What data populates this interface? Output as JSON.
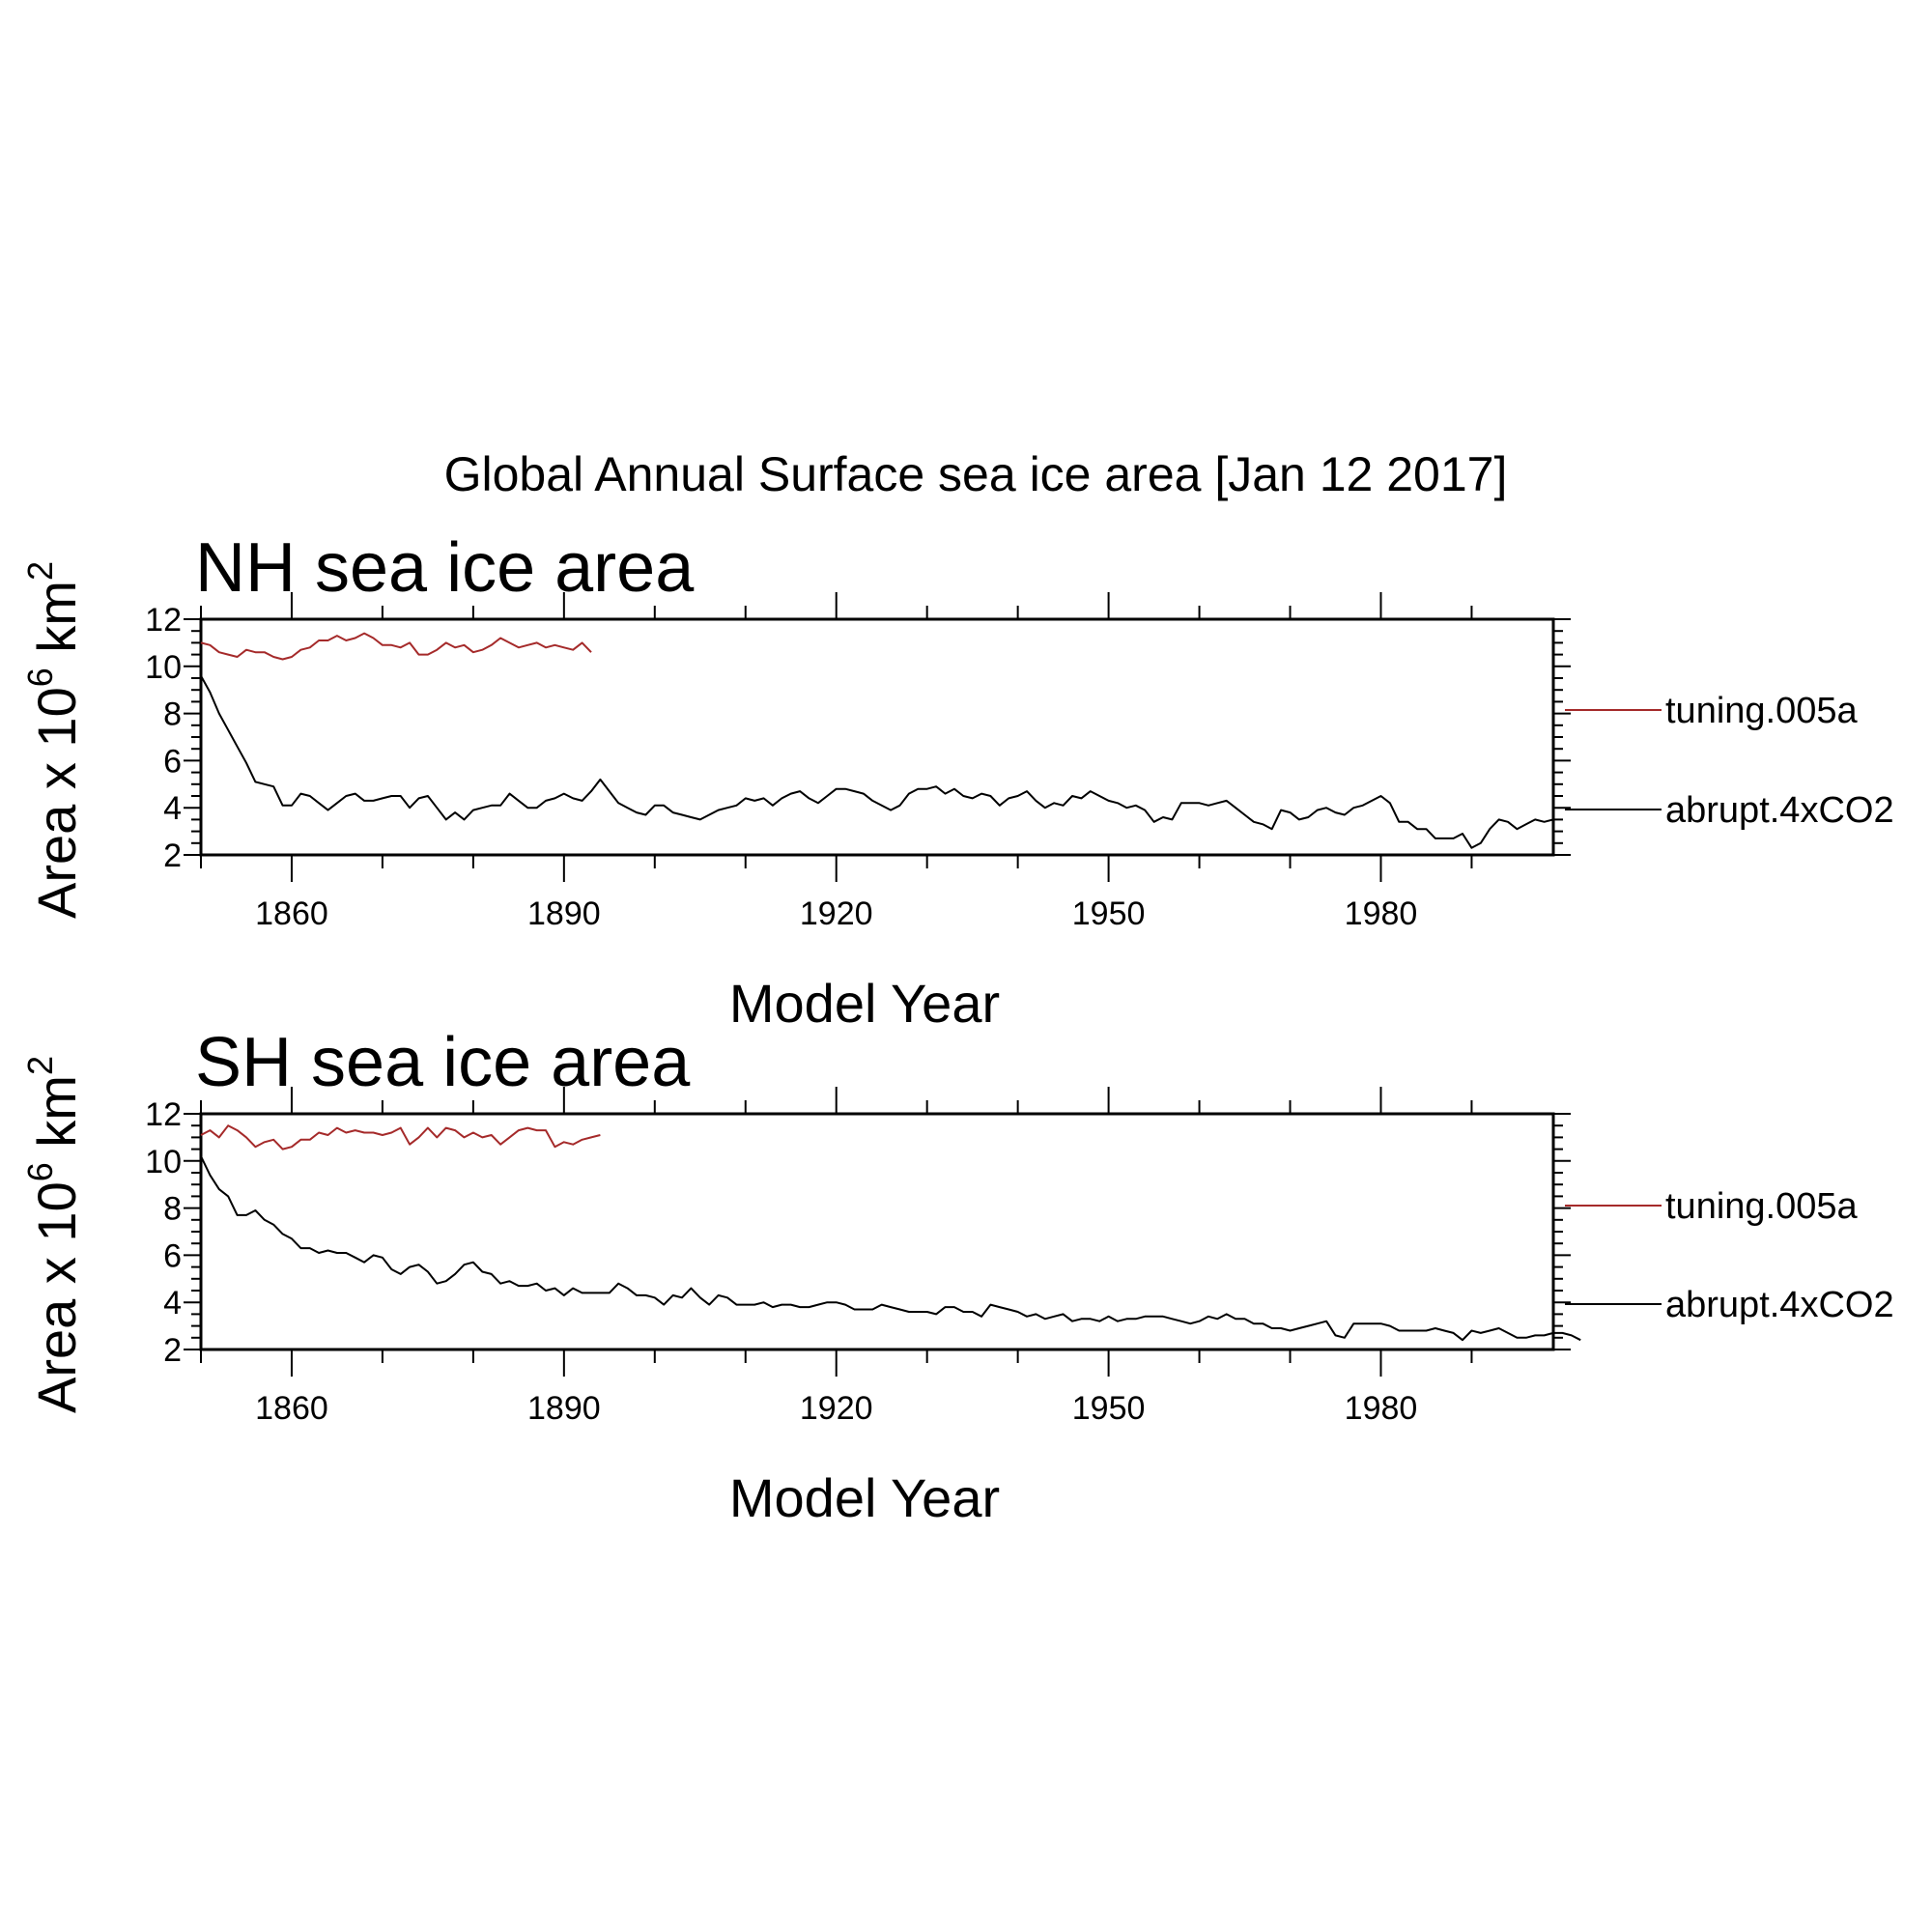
{
  "figure_title": "Global Annual Surface sea ice area [Jan 12 2017]",
  "colors": {
    "tuning": "#a52a2a",
    "abrupt": "#000000"
  },
  "chart_data": [
    {
      "type": "line",
      "title": "NH sea ice area",
      "xlabel": "Model Year",
      "ylabel_prefix": "Area x 10",
      "ylabel_exp": "6",
      "ylabel_unit": " km",
      "ylabel_unit_exp": "2",
      "xlim": [
        1850,
        1999
      ],
      "ylim": [
        2,
        12
      ],
      "x_ticks": [
        1860,
        1890,
        1920,
        1950,
        1980
      ],
      "y_ticks": [
        2,
        4,
        6,
        8,
        10,
        12
      ],
      "grid": false,
      "legend": "right",
      "series": [
        {
          "name": "tuning.005a",
          "color": "#a52a2a",
          "x_start": 1850,
          "values": [
            11.0,
            10.9,
            10.6,
            10.5,
            10.4,
            10.7,
            10.6,
            10.6,
            10.4,
            10.3,
            10.4,
            10.7,
            10.8,
            11.1,
            11.1,
            11.3,
            11.1,
            11.2,
            11.4,
            11.2,
            10.9,
            10.9,
            10.8,
            11.0,
            10.5,
            10.5,
            10.7,
            11.0,
            10.8,
            10.9,
            10.6,
            10.7,
            10.9,
            11.2,
            11.0,
            10.8,
            10.9,
            11.0,
            10.8,
            10.9,
            10.8,
            10.7,
            11.0,
            10.6
          ]
        },
        {
          "name": "abrupt.4xCO2",
          "color": "#000000",
          "x_start": 1850,
          "values": [
            9.6,
            8.9,
            8.0,
            7.3,
            6.6,
            5.9,
            5.1,
            5.0,
            4.9,
            4.1,
            4.1,
            4.6,
            4.5,
            4.2,
            3.9,
            4.2,
            4.5,
            4.6,
            4.3,
            4.3,
            4.4,
            4.5,
            4.5,
            4.0,
            4.4,
            4.5,
            4.0,
            3.5,
            3.8,
            3.5,
            3.9,
            4.0,
            4.1,
            4.1,
            4.6,
            4.3,
            4.0,
            4.0,
            4.3,
            4.4,
            4.6,
            4.4,
            4.3,
            4.7,
            5.2,
            4.7,
            4.2,
            4.0,
            3.8,
            3.7,
            4.1,
            4.1,
            3.8,
            3.7,
            3.6,
            3.5,
            3.7,
            3.9,
            4.0,
            4.1,
            4.4,
            4.3,
            4.4,
            4.1,
            4.4,
            4.6,
            4.7,
            4.4,
            4.2,
            4.5,
            4.8,
            4.8,
            4.7,
            4.6,
            4.3,
            4.1,
            3.9,
            4.1,
            4.6,
            4.8,
            4.8,
            4.9,
            4.6,
            4.8,
            4.5,
            4.4,
            4.6,
            4.5,
            4.1,
            4.4,
            4.5,
            4.7,
            4.3,
            4.0,
            4.2,
            4.1,
            4.5,
            4.4,
            4.7,
            4.5,
            4.3,
            4.2,
            4.0,
            4.1,
            3.9,
            3.4,
            3.6,
            3.5,
            4.2,
            4.2,
            4.2,
            4.1,
            4.2,
            4.3,
            4.0,
            3.7,
            3.4,
            3.3,
            3.1,
            3.9,
            3.8,
            3.5,
            3.6,
            3.9,
            4.0,
            3.8,
            3.7,
            4.0,
            4.1,
            4.3,
            4.5,
            4.2,
            3.4,
            3.4,
            3.1,
            3.1,
            2.7,
            2.7,
            2.7,
            2.9,
            2.3,
            2.5,
            3.1,
            3.5,
            3.4,
            3.1,
            3.3,
            3.5,
            3.4,
            3.5
          ]
        }
      ]
    },
    {
      "type": "line",
      "title": "SH sea ice area",
      "xlabel": "Model Year",
      "ylabel_prefix": "Area x 10",
      "ylabel_exp": "6",
      "ylabel_unit": " km",
      "ylabel_unit_exp": "2",
      "xlim": [
        1850,
        1999
      ],
      "ylim": [
        2,
        12
      ],
      "x_ticks": [
        1860,
        1890,
        1920,
        1950,
        1980
      ],
      "y_ticks": [
        2,
        4,
        6,
        8,
        10,
        12
      ],
      "grid": false,
      "legend": "right",
      "series": [
        {
          "name": "tuning.005a",
          "color": "#a52a2a",
          "x_start": 1850,
          "values": [
            11.1,
            11.3,
            11.0,
            11.5,
            11.3,
            11.0,
            10.6,
            10.8,
            10.9,
            10.5,
            10.6,
            10.9,
            10.9,
            11.2,
            11.1,
            11.4,
            11.2,
            11.3,
            11.2,
            11.2,
            11.1,
            11.2,
            11.4,
            10.7,
            11.0,
            11.4,
            11.0,
            11.4,
            11.3,
            11.0,
            11.2,
            11.0,
            11.1,
            10.7,
            11.0,
            11.3,
            11.4,
            11.3,
            11.3,
            10.6,
            10.8,
            10.7,
            10.9,
            11.0,
            11.1
          ]
        },
        {
          "name": "abrupt.4xCO2",
          "color": "#000000",
          "x_start": 1850,
          "values": [
            10.2,
            9.4,
            8.8,
            8.5,
            7.7,
            7.7,
            7.9,
            7.5,
            7.3,
            6.9,
            6.7,
            6.3,
            6.3,
            6.1,
            6.2,
            6.1,
            6.1,
            5.9,
            5.7,
            6.0,
            5.9,
            5.4,
            5.2,
            5.5,
            5.6,
            5.3,
            4.8,
            4.9,
            5.2,
            5.6,
            5.7,
            5.3,
            5.2,
            4.8,
            4.9,
            4.7,
            4.7,
            4.8,
            4.5,
            4.6,
            4.3,
            4.6,
            4.4,
            4.4,
            4.4,
            4.4,
            4.8,
            4.6,
            4.3,
            4.3,
            4.2,
            3.9,
            4.3,
            4.2,
            4.6,
            4.2,
            3.9,
            4.3,
            4.2,
            3.9,
            3.9,
            3.9,
            4.0,
            3.8,
            3.9,
            3.9,
            3.8,
            3.8,
            3.9,
            4.0,
            4.0,
            3.9,
            3.7,
            3.7,
            3.7,
            3.9,
            3.8,
            3.7,
            3.6,
            3.6,
            3.6,
            3.5,
            3.8,
            3.8,
            3.6,
            3.6,
            3.4,
            3.9,
            3.8,
            3.7,
            3.6,
            3.4,
            3.5,
            3.3,
            3.4,
            3.5,
            3.2,
            3.3,
            3.3,
            3.2,
            3.4,
            3.2,
            3.3,
            3.3,
            3.4,
            3.4,
            3.4,
            3.3,
            3.2,
            3.1,
            3.2,
            3.4,
            3.3,
            3.5,
            3.3,
            3.3,
            3.1,
            3.1,
            2.9,
            2.9,
            2.8,
            2.9,
            3.0,
            3.1,
            3.2,
            2.6,
            2.5,
            3.1,
            3.1,
            3.1,
            3.1,
            3.0,
            2.8,
            2.8,
            2.8,
            2.8,
            2.9,
            2.8,
            2.7,
            2.4,
            2.8,
            2.7,
            2.8,
            2.9,
            2.7,
            2.5,
            2.5,
            2.6,
            2.6,
            2.7,
            2.7,
            2.6,
            2.4
          ]
        }
      ]
    }
  ]
}
